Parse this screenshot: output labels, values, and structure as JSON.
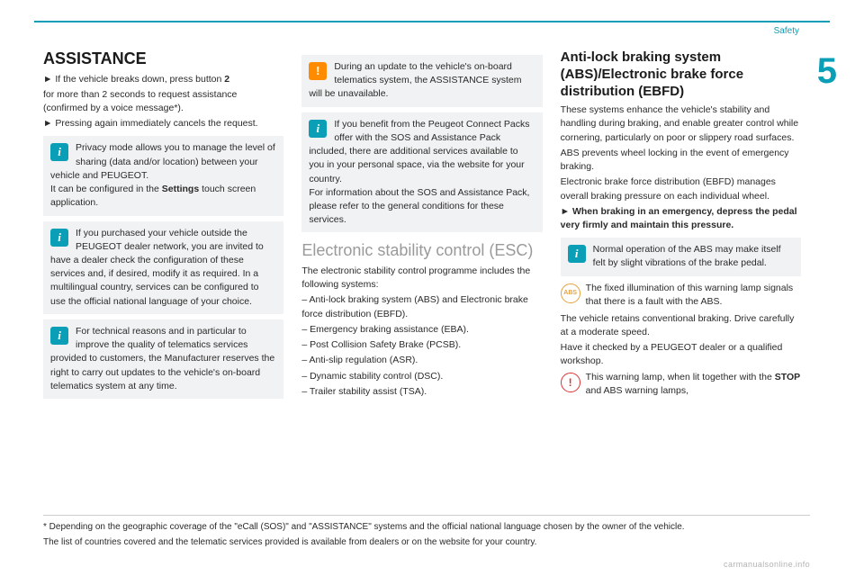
{
  "header": {
    "section_label": "Safety",
    "chapter": "5"
  },
  "col1": {
    "heading": "ASSISTANCE",
    "p1a": "If the vehicle breaks down, press button ",
    "p1b": "2",
    "p2": "for more than 2 seconds to request assistance (confirmed by a voice message*).",
    "p3": "Pressing again immediately cancels the request.",
    "box1a": "Privacy mode allows you to manage the level of sharing (data and/or location) between your vehicle and PEUGEOT.",
    "box1b_a": "It can be configured in the ",
    "box1b_b": "Settings",
    "box1b_c": " touch screen application.",
    "box2": "If you purchased your vehicle outside the PEUGEOT dealer network, you are invited to have a dealer check the configuration of these services and, if desired, modify it as required. In a multilingual country, services can be configured to use the official national language of your choice.",
    "box3": "For technical reasons and in particular to improve the quality of telematics services provided to customers, the Manufacturer reserves the right to carry out updates to the vehicle's on-board telematics system at any time."
  },
  "col2": {
    "warn": "During an update to the vehicle's on-board telematics system, the ASSISTANCE system will be unavailable.",
    "box1a": "If you benefit from the Peugeot Connect Packs offer with the SOS and Assistance Pack included, there are additional services available to you in your personal space, via the website for your country.",
    "box1b": "For information about the SOS and Assistance Pack, please refer to the general conditions for these services.",
    "esc_heading": "Electronic stability control (ESC)",
    "esc_intro": "The electronic stability control programme includes the following systems:",
    "esc_li1": "Anti-lock braking system (ABS) and Electronic brake force distribution (EBFD).",
    "esc_li2": "Emergency braking assistance (EBA).",
    "esc_li3": "Post Collision Safety Brake (PCSB).",
    "esc_li4": "Anti-slip regulation (ASR).",
    "esc_li5": "Dynamic stability control (DSC).",
    "esc_li6": "Trailer stability assist (TSA)."
  },
  "col3": {
    "heading": "Anti-lock braking system (ABS)/Electronic brake force distribution (EBFD)",
    "p1": "These systems enhance the vehicle's stability and handling during braking, and enable greater control while cornering, particularly on poor or slippery road surfaces.",
    "p2": "ABS prevents wheel locking in the event of emergency braking.",
    "p3": "Electronic brake force distribution (EBFD) manages overall braking pressure on each individual wheel.",
    "p4": "When braking in an emergency, depress the pedal very firmly and maintain this pressure.",
    "box1": "Normal operation of the ABS may make itself felt by slight vibrations of the brake pedal.",
    "abs1": "The fixed illumination of this warning lamp signals that there is a fault with the ABS.",
    "abs2": "The vehicle retains conventional braking. Drive carefully at a moderate speed.",
    "abs3": "Have it checked by a PEUGEOT dealer or a qualified workshop.",
    "stop1a": "This warning lamp, when lit together with the ",
    "stop1b": "STOP",
    "stop1c": " and ABS warning lamps,"
  },
  "footer": {
    "line1": "* Depending on the geographic coverage of the \"eCall (SOS)\" and \"ASSISTANCE\" systems and the official national language chosen by the owner of the vehicle.",
    "line2": "The list of countries covered and the telematic services provided is available from dealers or on the website for your country."
  },
  "watermark": "carmanualsonline.info",
  "icons": {
    "info": "i",
    "warn": "!",
    "abs": "ABS",
    "stop": "!"
  }
}
